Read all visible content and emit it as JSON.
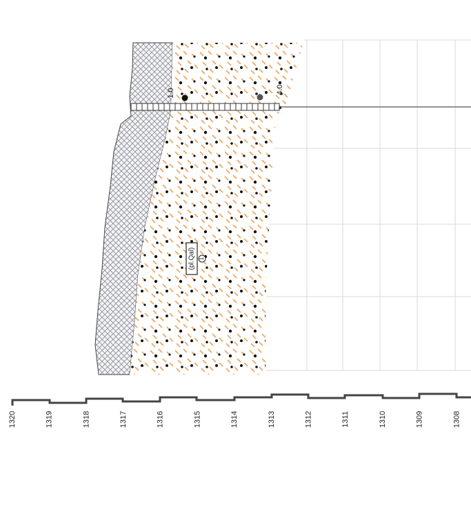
{
  "scale": {
    "labels": [
      "1320",
      "1319",
      "1318",
      "1317",
      "1316",
      "1315",
      "1314",
      "1313",
      "1312",
      "1311",
      "1310",
      "1309",
      "1308"
    ]
  },
  "borehole": {
    "markers": [
      "1.0",
      "4.0"
    ]
  },
  "unit": {
    "label": "(pl.Qal)",
    "number": "1"
  }
}
